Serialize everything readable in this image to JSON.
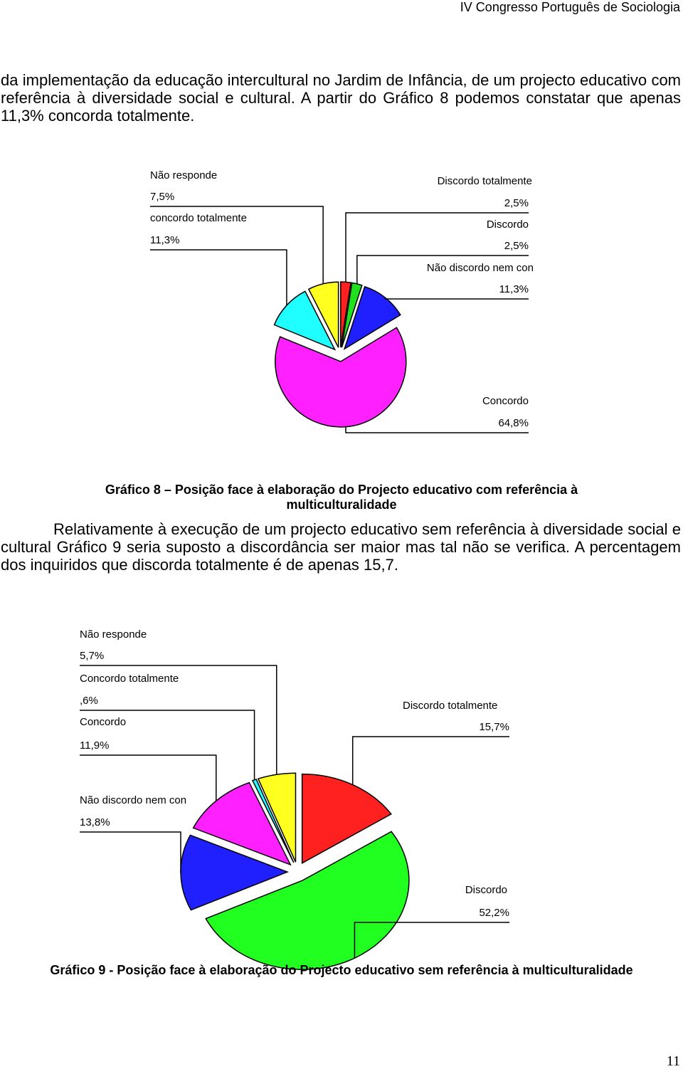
{
  "header": "IV Congresso Português de Sociologia",
  "paragraphs": [
    "da implementação da educação intercultural no Jardim de Infância, de um projecto educativo com referência à diversidade social e cultural. A partir do Gráfico 8 podemos constatar que apenas 11,3% concorda totalmente.",
    "Relativamente à execução de um projecto educativo sem referência à diversidade social e cultural Gráfico 9 seria suposto a discordância ser maior mas tal não se verifica. A percentagem dos inquiridos que discorda totalmente é de apenas 15,7."
  ],
  "chart_data": [
    {
      "type": "pie",
      "title": "Gráfico 8 – Posição face à elaboração do Projecto educativo com referência à multiculturalidade",
      "categories": [
        "Discordo totalmente",
        "Discordo",
        "Não discordo nem con",
        "Concordo",
        "concordo totalmente",
        "Não responde"
      ],
      "values": [
        2.5,
        2.5,
        11.3,
        64.8,
        11.3,
        7.5
      ],
      "value_labels": [
        "2,5%",
        "2,5%",
        "11,3%",
        "64,8%",
        "11,3%",
        "7,5%"
      ],
      "colors": [
        "#ff2020",
        "#20e020",
        "#2020ff",
        "#ff20ff",
        "#20ffff",
        "#ffff20"
      ]
    },
    {
      "type": "pie",
      "title": "Gráfico 9 - Posição face à elaboração do Projecto educativo sem referência à multiculturalidade",
      "categories": [
        "Discordo totalmente",
        "Discordo",
        "Não discordo nem con",
        "Concordo",
        "Concordo totalmente",
        "Não responde"
      ],
      "values": [
        15.7,
        52.2,
        13.8,
        11.9,
        0.6,
        5.7
      ],
      "value_labels": [
        "15,7%",
        "52,2%",
        "13,8%",
        "11,9%",
        ",6%",
        "5,7%"
      ],
      "colors": [
        "#ff2020",
        "#20ff20",
        "#2020ff",
        "#ff20ff",
        "#20ffff",
        "#ffff20"
      ]
    }
  ],
  "page_number": "11"
}
